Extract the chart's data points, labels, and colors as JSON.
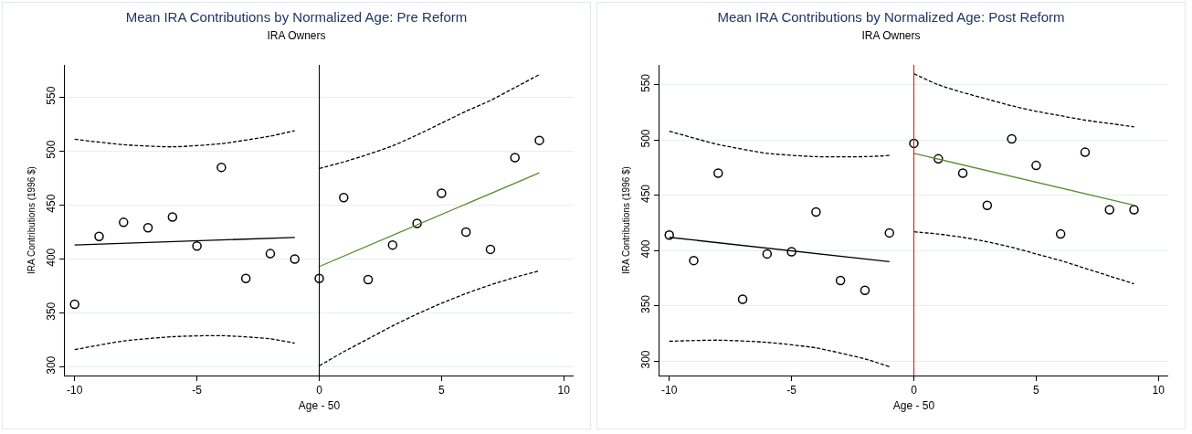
{
  "chart_data": [
    {
      "type": "scatter",
      "title": "Mean IRA Contributions by Normalized Age: Pre Reform",
      "subtitle": "IRA Owners",
      "xlabel": "Age - 50",
      "ylabel": "IRA Contributions (1996 $)",
      "xlim": [
        -10.4,
        10.4
      ],
      "xticks": [
        -10,
        -5,
        0,
        5,
        10
      ],
      "ylim": [
        292,
        580
      ],
      "yticks": [
        300,
        350,
        400,
        450,
        500,
        550
      ],
      "grid": "y",
      "ref_lines": [
        {
          "axis": "x",
          "value": 0,
          "color": "#000000"
        }
      ],
      "series": [
        {
          "type": "scatter",
          "marker": "circle",
          "color": "#000000",
          "x": [
            -10,
            -9,
            -8,
            -7,
            -6,
            -5,
            -4,
            -3,
            -2,
            -1,
            0,
            1,
            2,
            3,
            4,
            5,
            6,
            7,
            8,
            9
          ],
          "values": [
            358,
            421,
            434,
            429,
            439,
            412,
            485,
            382,
            405,
            400,
            382,
            457,
            381,
            413,
            433,
            461,
            425,
            409,
            494,
            510
          ]
        },
        {
          "type": "line",
          "line_style": "solid",
          "color": "#000000",
          "x": [
            -10,
            -1
          ],
          "values": [
            413,
            420
          ]
        },
        {
          "type": "line",
          "line_style": "dashed",
          "color": "#000000",
          "x": [
            -10,
            -8,
            -6,
            -4,
            -2,
            -1
          ],
          "values": [
            511,
            506,
            504,
            507,
            514,
            519
          ]
        },
        {
          "type": "line",
          "line_style": "dashed",
          "color": "#000000",
          "x": [
            -10,
            -8,
            -6,
            -4,
            -2,
            -1
          ],
          "values": [
            316,
            324,
            328,
            329,
            326,
            322
          ]
        },
        {
          "type": "line",
          "line_style": "solid",
          "color": "#5a8a2e",
          "x": [
            0,
            9
          ],
          "values": [
            393,
            480
          ]
        },
        {
          "type": "line",
          "line_style": "dashed",
          "color": "#000000",
          "x": [
            0,
            1,
            2,
            3,
            4,
            5,
            6,
            7,
            8,
            9
          ],
          "values": [
            484,
            490,
            497,
            505,
            515,
            526,
            537,
            547,
            559,
            571
          ]
        },
        {
          "type": "line",
          "line_style": "dashed",
          "color": "#000000",
          "x": [
            0,
            1,
            2,
            3,
            4,
            5,
            6,
            7,
            8,
            9
          ],
          "values": [
            301,
            314,
            326,
            338,
            349,
            359,
            368,
            376,
            383,
            389
          ]
        }
      ]
    },
    {
      "type": "scatter",
      "title": "Mean IRA Contributions by Normalized Age: Post Reform",
      "subtitle": "IRA Owners",
      "xlabel": "Age - 50",
      "ylabel": "IRA Contributions (1996 $)",
      "xlim": [
        -10.4,
        10.4
      ],
      "xticks": [
        -10,
        -5,
        0,
        5,
        10
      ],
      "ylim": [
        287,
        568
      ],
      "yticks": [
        300,
        350,
        400,
        450,
        500,
        550
      ],
      "grid": "y",
      "ref_lines": [
        {
          "axis": "x",
          "value": 0,
          "color": "#ff0000"
        }
      ],
      "series": [
        {
          "type": "scatter",
          "marker": "circle",
          "color": "#000000",
          "x": [
            -10,
            -9,
            -8,
            -7,
            -6,
            -5,
            -4,
            -3,
            -2,
            -1,
            0,
            1,
            2,
            3,
            4,
            5,
            6,
            7,
            8,
            9
          ],
          "values": [
            414,
            391,
            470,
            356,
            397,
            399,
            435,
            373,
            364,
            416,
            497,
            483,
            470,
            441,
            501,
            477,
            415,
            489,
            437,
            437
          ]
        },
        {
          "type": "line",
          "line_style": "solid",
          "color": "#000000",
          "x": [
            -10,
            -1
          ],
          "values": [
            412,
            390
          ]
        },
        {
          "type": "line",
          "line_style": "dashed",
          "color": "#000000",
          "x": [
            -10,
            -8,
            -6,
            -4,
            -2,
            -1
          ],
          "values": [
            508,
            496,
            488,
            485,
            485,
            486
          ]
        },
        {
          "type": "line",
          "line_style": "dashed",
          "color": "#000000",
          "x": [
            -10,
            -8,
            -6,
            -4,
            -2,
            -1
          ],
          "values": [
            318,
            319,
            317,
            312,
            302,
            295
          ]
        },
        {
          "type": "line",
          "line_style": "solid",
          "color": "#5a8a2e",
          "x": [
            0,
            9
          ],
          "values": [
            488,
            441
          ]
        },
        {
          "type": "line",
          "line_style": "dashed",
          "color": "#000000",
          "x": [
            0,
            1,
            2,
            3,
            4,
            5,
            6,
            7,
            8,
            9
          ],
          "values": [
            560,
            550,
            543,
            537,
            531,
            526,
            522,
            518,
            515,
            512
          ]
        },
        {
          "type": "line",
          "line_style": "dashed",
          "color": "#000000",
          "x": [
            0,
            1,
            2,
            3,
            4,
            5,
            6,
            7,
            8,
            9
          ],
          "values": [
            417,
            415,
            412,
            408,
            403,
            397,
            391,
            384,
            377,
            370
          ]
        }
      ]
    }
  ]
}
